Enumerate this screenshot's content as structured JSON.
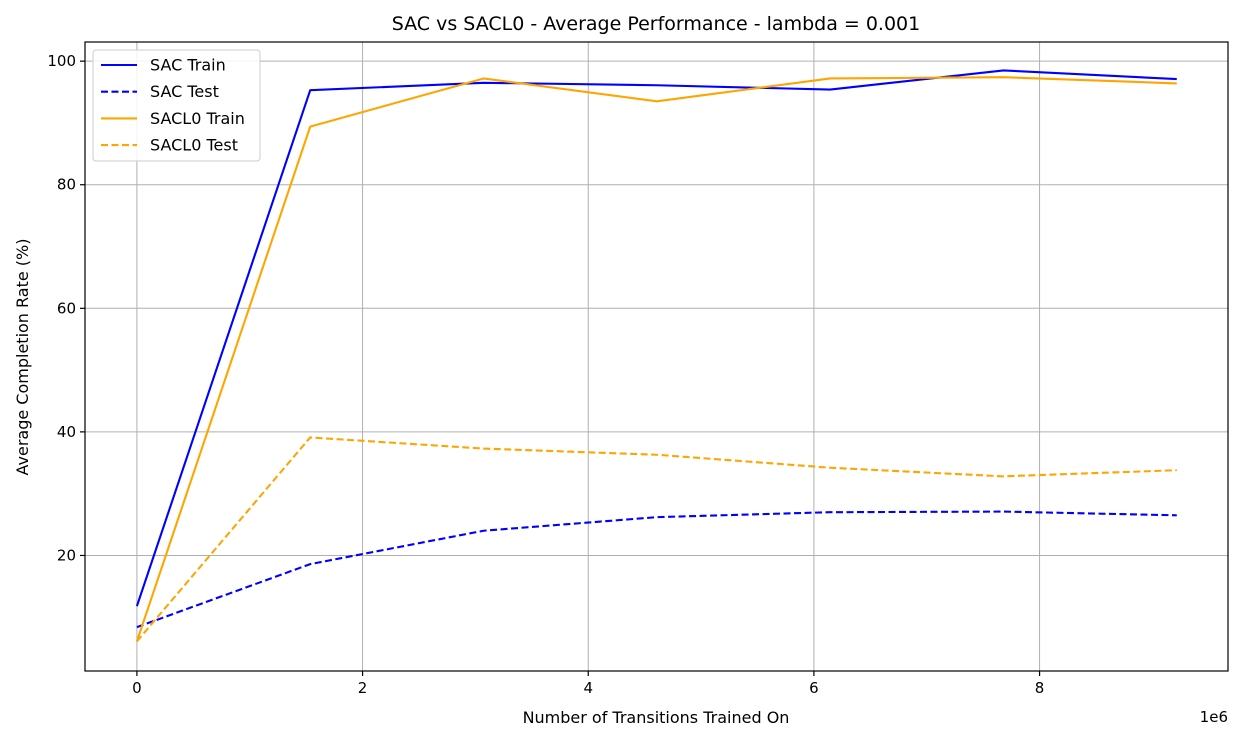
{
  "chart_data": {
    "type": "line",
    "title": "SAC vs SACL0 - Average Performance - lambda = 0.001",
    "xlabel": "Number of Transitions Trained On",
    "ylabel": "Average Completion Rate (%)",
    "x_offset_label": "1e6",
    "x": [
      0,
      1.536,
      3.072,
      4.608,
      6.144,
      7.68,
      9.216
    ],
    "xlim": [
      -0.46,
      9.67
    ],
    "ylim": [
      1.3,
      103.1
    ],
    "xticks": [
      0,
      2,
      4,
      6,
      8
    ],
    "xtick_labels": [
      "0",
      "2",
      "4",
      "6",
      "8"
    ],
    "yticks": [
      20,
      40,
      60,
      80,
      100
    ],
    "ytick_labels": [
      "20",
      "40",
      "60",
      "80",
      "100"
    ],
    "grid": true,
    "legend_position": "top-left",
    "series": [
      {
        "name": "SAC Train",
        "color": "#0000ff",
        "dashed": false,
        "values": [
          11.8,
          95.3,
          96.5,
          96.1,
          95.4,
          98.5,
          97.1
        ]
      },
      {
        "name": "SAC Test",
        "color": "#0000ff",
        "dashed": true,
        "values": [
          8.4,
          18.6,
          24.0,
          26.2,
          27.0,
          27.1,
          26.5
        ]
      },
      {
        "name": "SACL0 Train",
        "color": "#ffa500",
        "dashed": false,
        "values": [
          6.1,
          89.4,
          97.2,
          93.5,
          97.2,
          97.4,
          96.4
        ]
      },
      {
        "name": "SACL0 Test",
        "color": "#ffa500",
        "dashed": true,
        "values": [
          6.1,
          39.1,
          37.3,
          36.3,
          34.2,
          32.8,
          33.8
        ]
      }
    ]
  }
}
